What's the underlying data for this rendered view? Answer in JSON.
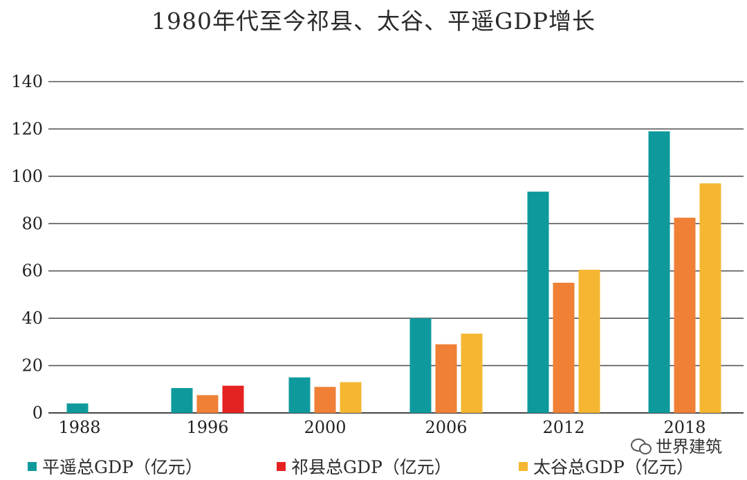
{
  "chart_data": {
    "type": "bar",
    "title": "1980年代至今祁县、太谷、平遥GDP增长",
    "categories": [
      "1988",
      "1996",
      "2000",
      "2006",
      "2012",
      "2018"
    ],
    "series": [
      {
        "name": "平遥总GDP（亿元）",
        "color": "#0e9a9c",
        "values": [
          4,
          10.5,
          15,
          40,
          93.5,
          119
        ]
      },
      {
        "name": "祁县总GDP（亿元）",
        "color": "#ef8036",
        "values": [
          null,
          7.5,
          11,
          29,
          55,
          82.5
        ]
      },
      {
        "name": "太谷总GDP（亿元）",
        "color": "#f5b731",
        "values": [
          null,
          11.5,
          13,
          33.5,
          60.5,
          97
        ]
      }
    ],
    "highlight_colors": {
      "祁县总GDP（亿元）_1996_third_bar": "#e52222"
    },
    "legend_swatch_colors": [
      "#0e9a9c",
      "#e52222",
      "#f5b731"
    ],
    "ylim": [
      0,
      140
    ],
    "yticks": [
      0,
      20,
      40,
      60,
      80,
      100,
      120,
      140
    ],
    "grid": true,
    "legend_position": "bottom"
  },
  "watermark": "世界建筑"
}
